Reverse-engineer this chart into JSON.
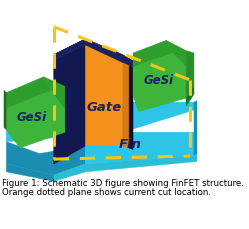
{
  "caption_line1": "Figure 1: Schematic 3D figure showing FinFET structure.",
  "caption_line2": "Orange dotted plane shows current cut location.",
  "caption_fontsize": 6.2,
  "caption_color": "#000000",
  "fig_width": 2.49,
  "fig_height": 2.3,
  "dpi": 100,
  "bg_color": "#ffffff",
  "colors": {
    "fin_top": "#2ec4e8",
    "fin_left_side": "#1a8db0",
    "fin_front": "#2ec4e8",
    "fin_right_wall": "#1490b8",
    "fin_right_face": "#2bbdd6",
    "gate_orange_front": "#f5921e",
    "gate_orange_side": "#d97a10",
    "gate_navy_top": "#1a2260",
    "gate_navy_left": "#141850",
    "gate_black_edge": "#0a0d28",
    "gesi_green_front": "#3cb53a",
    "gesi_green_top": "#2e9e2c",
    "gesi_green_dark": "#1e7020",
    "gesi_green_right": "#28902a",
    "dashed": "#f5c518",
    "label_dark": "#1a2060"
  },
  "labels": {
    "gate": "Gate",
    "fin": "Fin",
    "gesi_left": "GeSi",
    "gesi_right": "GeSi"
  }
}
